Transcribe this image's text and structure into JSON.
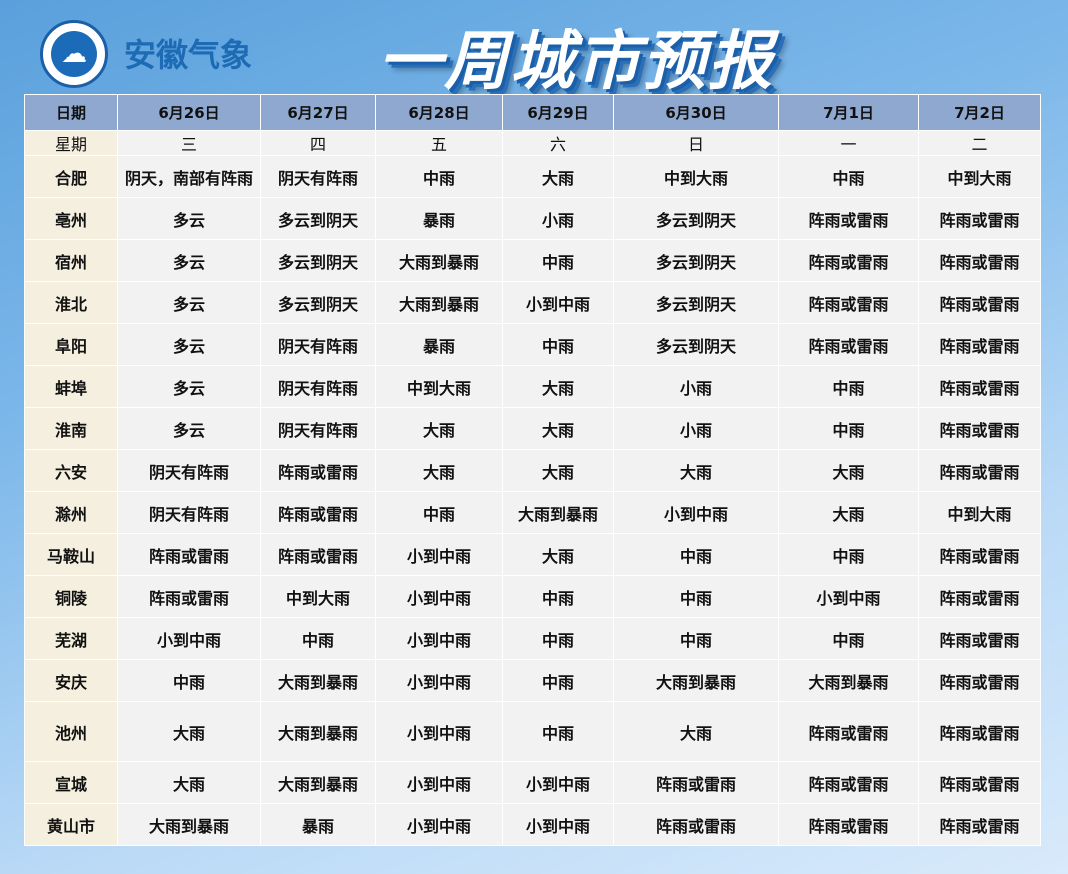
{
  "header": {
    "brand": "安徽气象",
    "title": "一周城市预报",
    "logo_icon": "cloud-emblem-icon"
  },
  "table": {
    "date_label": "日期",
    "weekday_label": "星期",
    "dates": [
      "6月26日",
      "6月27日",
      "6月28日",
      "6月29日",
      "6月30日",
      "7月1日",
      "7月2日"
    ],
    "weekdays": [
      "三",
      "四",
      "五",
      "六",
      "日",
      "一",
      "二"
    ],
    "rows": [
      {
        "city": "合肥",
        "f": [
          "阴天，南部有阵雨",
          "阴天有阵雨",
          "中雨",
          "大雨",
          "中到大雨",
          "中雨",
          "中到大雨"
        ]
      },
      {
        "city": "亳州",
        "f": [
          "多云",
          "多云到阴天",
          "暴雨",
          "小雨",
          "多云到阴天",
          "阵雨或雷雨",
          "阵雨或雷雨"
        ]
      },
      {
        "city": "宿州",
        "f": [
          "多云",
          "多云到阴天",
          "大雨到暴雨",
          "中雨",
          "多云到阴天",
          "阵雨或雷雨",
          "阵雨或雷雨"
        ]
      },
      {
        "city": "淮北",
        "f": [
          "多云",
          "多云到阴天",
          "大雨到暴雨",
          "小到中雨",
          "多云到阴天",
          "阵雨或雷雨",
          "阵雨或雷雨"
        ]
      },
      {
        "city": "阜阳",
        "f": [
          "多云",
          "阴天有阵雨",
          "暴雨",
          "中雨",
          "多云到阴天",
          "阵雨或雷雨",
          "阵雨或雷雨"
        ]
      },
      {
        "city": "蚌埠",
        "f": [
          "多云",
          "阴天有阵雨",
          "中到大雨",
          "大雨",
          "小雨",
          "中雨",
          "阵雨或雷雨"
        ]
      },
      {
        "city": "淮南",
        "f": [
          "多云",
          "阴天有阵雨",
          "大雨",
          "大雨",
          "小雨",
          "中雨",
          "阵雨或雷雨"
        ]
      },
      {
        "city": "六安",
        "f": [
          "阴天有阵雨",
          "阵雨或雷雨",
          "大雨",
          "大雨",
          "大雨",
          "大雨",
          "阵雨或雷雨"
        ]
      },
      {
        "city": "滁州",
        "f": [
          "阴天有阵雨",
          "阵雨或雷雨",
          "中雨",
          "大雨到暴雨",
          "小到中雨",
          "大雨",
          "中到大雨"
        ]
      },
      {
        "city": "马鞍山",
        "f": [
          "阵雨或雷雨",
          "阵雨或雷雨",
          "小到中雨",
          "大雨",
          "中雨",
          "中雨",
          "阵雨或雷雨"
        ]
      },
      {
        "city": "铜陵",
        "f": [
          "阵雨或雷雨",
          "中到大雨",
          "小到中雨",
          "中雨",
          "中雨",
          "小到中雨",
          "阵雨或雷雨"
        ]
      },
      {
        "city": "芜湖",
        "f": [
          "小到中雨",
          "中雨",
          "小到中雨",
          "中雨",
          "中雨",
          "中雨",
          "阵雨或雷雨"
        ]
      },
      {
        "city": "安庆",
        "f": [
          "中雨",
          "大雨到暴雨",
          "小到中雨",
          "中雨",
          "大雨到暴雨",
          "大雨到暴雨",
          "阵雨或雷雨"
        ]
      },
      {
        "city": "池州",
        "f": [
          "大雨",
          "大雨到暴雨",
          "小到中雨",
          "中雨",
          "大雨",
          "阵雨或雷雨",
          "阵雨或雷雨"
        ]
      },
      {
        "city": "宣城",
        "f": [
          "大雨",
          "大雨到暴雨",
          "小到中雨",
          "小到中雨",
          "阵雨或雷雨",
          "阵雨或雷雨",
          "阵雨或雷雨"
        ]
      },
      {
        "city": "黄山市",
        "f": [
          "大雨到暴雨",
          "暴雨",
          "小到中雨",
          "小到中雨",
          "阵雨或雷雨",
          "阵雨或雷雨",
          "阵雨或雷雨"
        ]
      }
    ]
  }
}
